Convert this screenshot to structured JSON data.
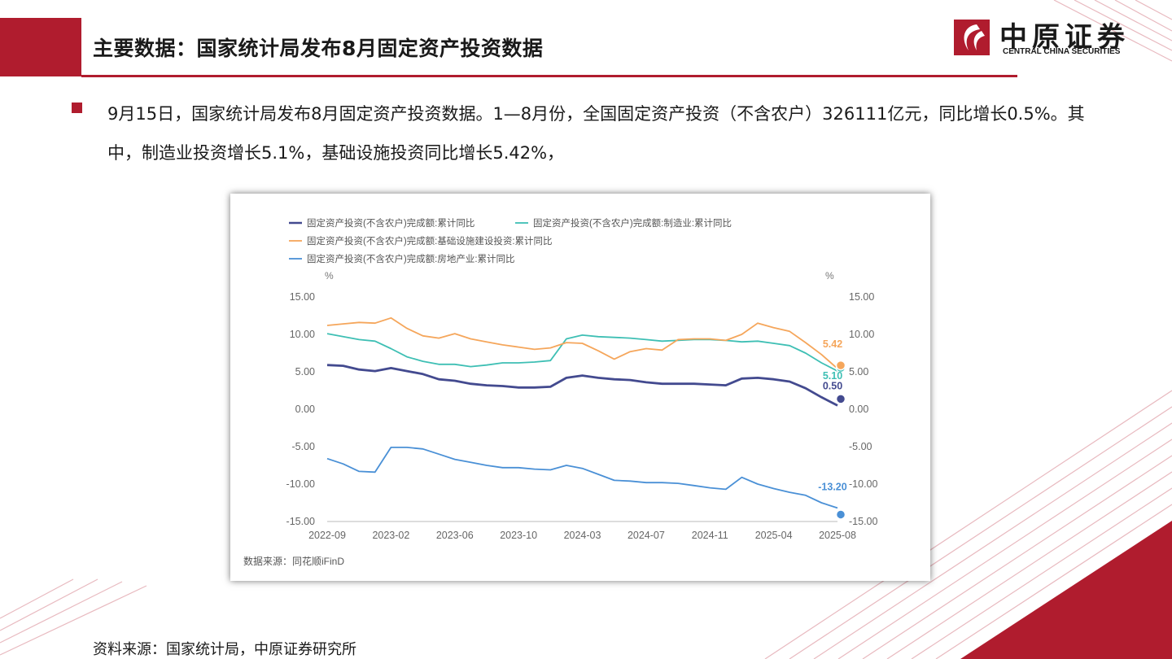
{
  "header": {
    "title": "主要数据：国家统计局发布8月固定资产投资数据",
    "logo_cn": "中原证券",
    "logo_en": "CENTRAL CHINA SECURITIES"
  },
  "body": {
    "paragraph": "9月15日，国家统计局发布8月固定资产投资数据。1—8月份，全国固定资产投资（不含农户）326111亿元，同比增长0.5%。其中，制造业投资增长5.1%，基础设施投资同比增长5.42%，"
  },
  "footer": {
    "source": "资料来源：国家统计局，中原证券研究所"
  },
  "colors": {
    "brand_red": "#b01c2e"
  },
  "chart_data": {
    "type": "line",
    "title": "",
    "xlabel": "",
    "ylabel_left": "%",
    "ylabel_right": "%",
    "ylim": [
      -15,
      15
    ],
    "yticks": [
      "15.00",
      "10.00",
      "5.00",
      "0.00",
      "-5.00",
      "-10.00",
      "-15.00"
    ],
    "ytick_values": [
      15,
      10,
      5,
      0,
      -5,
      -10,
      -15
    ],
    "xtick_labels": [
      "2022-09",
      "2023-02",
      "2023-06",
      "2023-10",
      "2024-03",
      "2024-07",
      "2024-11",
      "2025-04",
      "2025-08"
    ],
    "xtick_index": [
      0,
      4,
      8,
      12,
      16,
      20,
      24,
      28,
      32
    ],
    "x": [
      "2022-09",
      "2022-10",
      "2022-11",
      "2022-12",
      "2023-02",
      "2023-03",
      "2023-04",
      "2023-05",
      "2023-06",
      "2023-07",
      "2023-08",
      "2023-09",
      "2023-10",
      "2023-11",
      "2023-12",
      "2024-02",
      "2024-03",
      "2024-04",
      "2024-05",
      "2024-06",
      "2024-07",
      "2024-08",
      "2024-09",
      "2024-10",
      "2024-11",
      "2024-12",
      "2025-02",
      "2025-03",
      "2025-04",
      "2025-05",
      "2025-06",
      "2025-07",
      "2025-08"
    ],
    "series": [
      {
        "name": "固定资产投资(不含农户)完成额:累计同比",
        "color": "#434a8f",
        "width": 2.8,
        "values": [
          5.9,
          5.8,
          5.3,
          5.1,
          5.5,
          5.1,
          4.7,
          4.0,
          3.8,
          3.4,
          3.2,
          3.1,
          2.9,
          2.9,
          3.0,
          4.2,
          4.5,
          4.2,
          4.0,
          3.9,
          3.6,
          3.4,
          3.4,
          3.4,
          3.3,
          3.2,
          4.1,
          4.2,
          4.0,
          3.7,
          2.8,
          1.6,
          0.5
        ],
        "end_label": "0.50"
      },
      {
        "name": "固定资产投资(不含农户)完成额:制造业:累计同比",
        "color": "#3ebfb4",
        "width": 1.8,
        "values": [
          10.1,
          9.7,
          9.3,
          9.1,
          8.1,
          7.0,
          6.4,
          6.0,
          6.0,
          5.7,
          5.9,
          6.2,
          6.2,
          6.3,
          6.5,
          9.4,
          9.9,
          9.7,
          9.6,
          9.5,
          9.3,
          9.1,
          9.2,
          9.3,
          9.3,
          9.2,
          9.0,
          9.1,
          8.8,
          8.5,
          7.5,
          6.2,
          5.1
        ],
        "end_label": "5.10"
      },
      {
        "name": "固定资产投资(不含农户)完成额:基础设施建设投资:累计同比",
        "color": "#f5a65b",
        "width": 1.8,
        "values": [
          11.2,
          11.4,
          11.6,
          11.5,
          12.2,
          10.8,
          9.8,
          9.5,
          10.1,
          9.4,
          9.0,
          8.6,
          8.3,
          8.0,
          8.2,
          8.9,
          8.8,
          7.8,
          6.7,
          7.7,
          8.1,
          7.9,
          9.3,
          9.4,
          9.4,
          9.2,
          10.0,
          11.5,
          10.9,
          10.4,
          8.9,
          7.3,
          5.42
        ],
        "end_label": "5.42"
      },
      {
        "name": "固定资产投资(不含农户)完成额:房地产业:累计同比",
        "color": "#4a90d6",
        "width": 1.8,
        "values": [
          -6.6,
          -7.3,
          -8.3,
          -8.4,
          -5.1,
          -5.1,
          -5.3,
          -6.0,
          -6.7,
          -7.1,
          -7.5,
          -7.8,
          -7.8,
          -8.0,
          -8.1,
          -7.5,
          -7.9,
          -8.7,
          -9.5,
          -9.6,
          -9.8,
          -9.8,
          -9.9,
          -10.2,
          -10.5,
          -10.7,
          -9.1,
          -10.0,
          -10.6,
          -11.1,
          -11.5,
          -12.5,
          -13.2
        ],
        "end_label": "-13.20"
      }
    ],
    "legend_position": "top-left",
    "source_note": "数据来源：同花顺iFinD",
    "grid": false
  }
}
